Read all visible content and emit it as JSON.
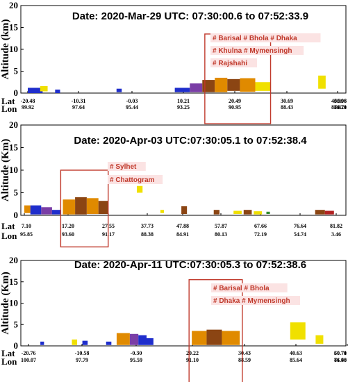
{
  "chart_data": [
    {
      "type": "scatter",
      "title": "Date: 2020-Mar-29 UTC: 07:30:00.6 to 07:52:33.9",
      "ylabel": "Altitude (km)",
      "ylim": [
        0,
        20
      ],
      "yticks": [
        "0",
        "5",
        "10",
        "15",
        "20"
      ],
      "lat_label": "Lat",
      "lon_label": "Lon",
      "lat_ticks": [
        "-20.48",
        "-10.31",
        "-0.03",
        "10.21",
        "20.49",
        "30.69",
        "40.90",
        "50.98",
        "60.96"
      ],
      "lon_ticks": [
        "99.92",
        "97.64",
        "95.44",
        "93.25",
        "90.95",
        "88.43",
        "85.47",
        "81.70",
        "76.21"
      ],
      "annotations": [
        "# Barisal # Bhola # Dhaka",
        "# Khulna # Mymensingh",
        "# Rajshahi"
      ],
      "highlight": {
        "lat_range": [
          14.5,
          27.5
        ],
        "bottom_alt": -7,
        "top_alt": 13.5
      },
      "colors": {
        "blue": "#1f2ecc",
        "purple": "#7a3ea6",
        "brown": "#8b4513",
        "orange": "#e08a00",
        "yellow": "#f0e000",
        "green": "#2e8b2e",
        "black": "#111111",
        "red": "#b22222",
        "highlight": "#c0392b"
      },
      "layers": [
        {
          "color": "blue",
          "lat_start": -20.48,
          "lat_end": -17.5,
          "alt_bottom": 0,
          "alt_top": 1.2
        },
        {
          "color": "yellow",
          "lat_start": -18.0,
          "lat_end": -16.5,
          "alt_bottom": 0.4,
          "alt_top": 1.6
        },
        {
          "color": "blue",
          "lat_start": -15.0,
          "lat_end": -14.0,
          "alt_bottom": 0,
          "alt_top": 0.8
        },
        {
          "color": "blue",
          "lat_start": -3.0,
          "lat_end": -2.0,
          "alt_bottom": 0.2,
          "alt_top": 1.0
        },
        {
          "color": "blue",
          "lat_start": 8.5,
          "lat_end": 11.5,
          "alt_bottom": 0.2,
          "alt_top": 1.2
        },
        {
          "color": "purple",
          "lat_start": 11.5,
          "lat_end": 14.0,
          "alt_bottom": 0.2,
          "alt_top": 2.2
        },
        {
          "color": "brown",
          "lat_start": 14.0,
          "lat_end": 16.5,
          "alt_bottom": 0.2,
          "alt_top": 3.0
        },
        {
          "color": "orange",
          "lat_start": 16.5,
          "lat_end": 19.0,
          "alt_bottom": 0.2,
          "alt_top": 3.5
        },
        {
          "color": "brown",
          "lat_start": 19.0,
          "lat_end": 21.5,
          "alt_bottom": 0.5,
          "alt_top": 3.2
        },
        {
          "color": "orange",
          "lat_start": 21.5,
          "lat_end": 24.5,
          "alt_bottom": 0.3,
          "alt_top": 3.4
        },
        {
          "color": "yellow",
          "lat_start": 24.5,
          "lat_end": 27.5,
          "alt_bottom": 0.5,
          "alt_top": 2.5
        },
        {
          "color": "yellow",
          "lat_start": 37.0,
          "lat_end": 38.5,
          "alt_bottom": 1.0,
          "alt_top": 4.0
        },
        {
          "color": "yellow",
          "lat_start": 46.0,
          "lat_end": 47.5,
          "alt_bottom": 0.5,
          "alt_top": 2.0
        },
        {
          "color": "brown",
          "lat_start": 48.0,
          "lat_end": 49.0,
          "alt_bottom": 0.5,
          "alt_top": 2.5
        },
        {
          "color": "black",
          "lat_start": 57.0,
          "lat_end": 58.5,
          "alt_bottom": 0.2,
          "alt_top": 2.5
        },
        {
          "color": "brown",
          "lat_start": 59.5,
          "lat_end": 60.96,
          "alt_bottom": 0.2,
          "alt_top": 2.0
        }
      ]
    },
    {
      "type": "scatter",
      "title": "Date: 2020-Apr-03 UTC:07:30:05.1 to 07:52:38.4",
      "ylabel": "Altitude (Km)",
      "ylim": [
        0,
        20
      ],
      "yticks": [
        "0",
        "5",
        "10",
        "15",
        "20"
      ],
      "lat_label": "Lat",
      "lon_label": "Lon",
      "lat_ticks": [
        "7.10",
        "17.20",
        "27.55",
        "37.73",
        "47.88",
        "57.87",
        "67.66",
        "76.64",
        "81.82"
      ],
      "lon_ticks": [
        "95.85",
        "93.60",
        "91.17",
        "88.38",
        "84.91",
        "80.13",
        "72.19",
        "54.74",
        "3.46"
      ],
      "annotations": [
        "# Sylhet",
        "# Chattogram"
      ],
      "highlight": {
        "lat_range": [
          15.5,
          27.5
        ],
        "bottom_alt": -7,
        "top_alt": 10
      },
      "colors": {
        "blue": "#1f2ecc",
        "purple": "#7a3ea6",
        "brown": "#8b4513",
        "orange": "#e08a00",
        "yellow": "#f0e000",
        "green": "#2e8b2e",
        "black": "#111111",
        "red": "#b22222",
        "highlight": "#c0392b"
      },
      "layers": [
        {
          "color": "orange",
          "lat_start": 7.1,
          "lat_end": 8.5,
          "alt_bottom": 0.5,
          "alt_top": 2.2
        },
        {
          "color": "blue",
          "lat_start": 8.5,
          "lat_end": 11.0,
          "alt_bottom": 0.2,
          "alt_top": 2.2
        },
        {
          "color": "purple",
          "lat_start": 11.0,
          "lat_end": 13.5,
          "alt_bottom": 0.2,
          "alt_top": 1.8
        },
        {
          "color": "blue",
          "lat_start": 13.5,
          "lat_end": 15.5,
          "alt_bottom": 0.2,
          "alt_top": 1.2
        },
        {
          "color": "orange",
          "lat_start": 16.0,
          "lat_end": 19.0,
          "alt_bottom": 0.2,
          "alt_top": 3.5
        },
        {
          "color": "brown",
          "lat_start": 19.0,
          "lat_end": 22.0,
          "alt_bottom": 0.2,
          "alt_top": 4.0
        },
        {
          "color": "orange",
          "lat_start": 22.0,
          "lat_end": 25.0,
          "alt_bottom": 0.3,
          "alt_top": 3.8
        },
        {
          "color": "brown",
          "lat_start": 25.0,
          "lat_end": 27.5,
          "alt_bottom": 0.3,
          "alt_top": 3.2
        },
        {
          "color": "yellow",
          "lat_start": 35.0,
          "lat_end": 36.5,
          "alt_bottom": 5.0,
          "alt_top": 6.5
        },
        {
          "color": "yellow",
          "lat_start": 41.5,
          "lat_end": 42.5,
          "alt_bottom": 0.5,
          "alt_top": 1.2
        },
        {
          "color": "brown",
          "lat_start": 47.5,
          "lat_end": 49.0,
          "alt_bottom": 0.3,
          "alt_top": 2.0
        },
        {
          "color": "brown",
          "lat_start": 56.0,
          "lat_end": 57.5,
          "alt_bottom": 0.2,
          "alt_top": 1.2
        },
        {
          "color": "yellow",
          "lat_start": 61.0,
          "lat_end": 63.0,
          "alt_bottom": 0.3,
          "alt_top": 1.0
        },
        {
          "color": "brown",
          "lat_start": 63.5,
          "lat_end": 65.5,
          "alt_bottom": 0.2,
          "alt_top": 1.2
        },
        {
          "color": "yellow",
          "lat_start": 66.0,
          "lat_end": 68.0,
          "alt_bottom": 0.2,
          "alt_top": 0.9
        },
        {
          "color": "green",
          "lat_start": 69.0,
          "lat_end": 69.8,
          "alt_bottom": 0.3,
          "alt_top": 0.8
        },
        {
          "color": "brown",
          "lat_start": 78.8,
          "lat_end": 80.2,
          "alt_bottom": 0.2,
          "alt_top": 1.2
        },
        {
          "color": "red",
          "lat_start": 80.2,
          "lat_end": 81.5,
          "alt_bottom": 0.2,
          "alt_top": 1.0
        }
      ]
    },
    {
      "type": "scatter",
      "title": "Date: 2020-Apr-11 UTC:07:30:05.3 to 07:52:38.6",
      "ylabel": "Altitude (Km)",
      "ylim": [
        0,
        20
      ],
      "yticks": [
        "0",
        "5",
        "10",
        "15",
        "20"
      ],
      "lat_label": "Lat",
      "lon_label": "Lon",
      "lat_ticks": [
        "-20.76",
        "-10.58",
        "-0.30",
        "20.22",
        "30.43",
        "40.63",
        "50.71",
        "60.70"
      ],
      "lon_ticks": [
        "100.07",
        "97.79",
        "95.59",
        "91.10",
        "88.59",
        "85.64",
        "81.90",
        "76.48"
      ],
      "annotations": [
        "# Barisal # Bhola",
        "# Dhaka # Mymensingh"
      ],
      "highlight": {
        "lat_range": [
          19.0,
          30.0
        ],
        "bottom_alt": -10,
        "top_alt": 15.5
      },
      "colors": {
        "blue": "#1f2ecc",
        "purple": "#7a3ea6",
        "brown": "#8b4513",
        "orange": "#e08a00",
        "yellow": "#f0e000",
        "green": "#2e8b2e",
        "black": "#111111",
        "red": "#b22222",
        "highlight": "#c0392b"
      },
      "layers": [
        {
          "color": "blue",
          "lat_start": -18.5,
          "lat_end": -17.8,
          "alt_bottom": 0.2,
          "alt_top": 1.0
        },
        {
          "color": "yellow",
          "lat_start": -12.5,
          "lat_end": -11.5,
          "alt_bottom": 0.2,
          "alt_top": 1.5
        },
        {
          "color": "blue",
          "lat_start": -10.5,
          "lat_end": -9.5,
          "alt_bottom": 0.2,
          "alt_top": 1.2
        },
        {
          "color": "blue",
          "lat_start": -6.0,
          "lat_end": -5.0,
          "alt_bottom": 0.2,
          "alt_top": 1.0
        },
        {
          "color": "orange",
          "lat_start": -4.0,
          "lat_end": -1.5,
          "alt_bottom": 0.2,
          "alt_top": 3.0
        },
        {
          "color": "purple",
          "lat_start": -1.5,
          "lat_end": 0.5,
          "alt_bottom": 0.2,
          "alt_top": 2.8
        },
        {
          "color": "blue",
          "lat_start": 0.5,
          "lat_end": 3.5,
          "alt_bottom": 0.2,
          "alt_top": 2.5
        },
        {
          "color": "blue",
          "lat_start": 3.5,
          "lat_end": 6.0,
          "alt_bottom": 0.2,
          "alt_top": 1.8
        },
        {
          "color": "orange",
          "lat_start": 20.0,
          "lat_end": 23.0,
          "alt_bottom": 0.2,
          "alt_top": 3.5
        },
        {
          "color": "brown",
          "lat_start": 23.0,
          "lat_end": 26.0,
          "alt_bottom": 0.2,
          "alt_top": 3.8
        },
        {
          "color": "orange",
          "lat_start": 26.0,
          "lat_end": 29.5,
          "alt_bottom": 0.2,
          "alt_top": 3.5
        },
        {
          "color": "yellow",
          "lat_start": 39.5,
          "lat_end": 42.5,
          "alt_bottom": 1.5,
          "alt_top": 5.5
        },
        {
          "color": "yellow",
          "lat_start": 44.5,
          "lat_end": 46.0,
          "alt_bottom": 0.5,
          "alt_top": 2.5
        },
        {
          "color": "yellow",
          "lat_start": 53.5,
          "lat_end": 55.0,
          "alt_bottom": 0.5,
          "alt_top": 3.2
        },
        {
          "color": "black",
          "lat_start": 56.5,
          "lat_end": 57.2,
          "alt_bottom": 2.3,
          "alt_top": 3.0
        },
        {
          "color": "black",
          "lat_start": 57.5,
          "lat_end": 59.0,
          "alt_bottom": 0.2,
          "alt_top": 2.5
        },
        {
          "color": "brown",
          "lat_start": 59.0,
          "lat_end": 60.7,
          "alt_bottom": 0.2,
          "alt_top": 2.0
        },
        {
          "color": "red",
          "lat_start": 58.2,
          "lat_end": 59.5,
          "alt_bottom": 0.3,
          "alt_top": 1.5
        }
      ]
    }
  ]
}
